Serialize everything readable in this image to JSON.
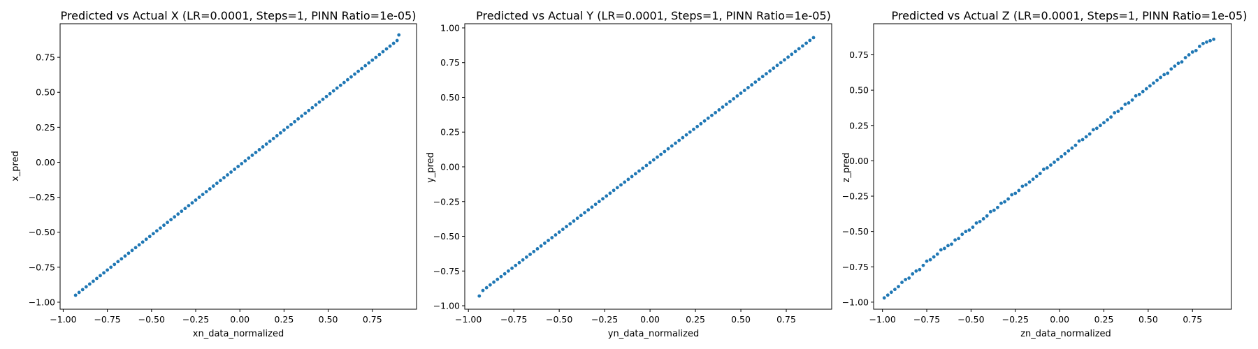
{
  "colors": {
    "point": "#1f77b4",
    "axes": "#000000",
    "background": "#ffffff"
  },
  "chart_data": [
    {
      "type": "scatter",
      "title": "Predicted vs Actual X (LR=0.0001, Steps=1, PINN Ratio=1e-05)",
      "xlabel": "xn_data_normalized",
      "ylabel": "x_pred",
      "xlim": [
        -1.0175,
        1.0
      ],
      "ylim": [
        -1.05,
        0.99
      ],
      "xticks": [
        -1.0,
        -0.75,
        -0.5,
        -0.25,
        0.0,
        0.25,
        0.5,
        0.75
      ],
      "yticks": [
        -1.0,
        -0.75,
        -0.5,
        -0.25,
        0.0,
        0.25,
        0.5,
        0.75
      ],
      "xtick_labels": [
        "−1.00",
        "−0.75",
        "−0.50",
        "−0.25",
        "0.00",
        "0.25",
        "0.50",
        "0.75"
      ],
      "ytick_labels": [
        "−1.00",
        "−0.75",
        "−0.50",
        "−0.25",
        "0.00",
        "0.25",
        "0.50",
        "0.75"
      ],
      "grid": false,
      "series": [
        {
          "x": [
            -0.93,
            -0.91,
            -0.89,
            -0.87,
            -0.85,
            -0.83,
            -0.81,
            -0.79,
            -0.77,
            -0.75,
            -0.73,
            -0.71,
            -0.69,
            -0.67,
            -0.65,
            -0.63,
            -0.61,
            -0.59,
            -0.57,
            -0.55,
            -0.53,
            -0.51,
            -0.49,
            -0.47,
            -0.45,
            -0.43,
            -0.41,
            -0.39,
            -0.37,
            -0.35,
            -0.33,
            -0.31,
            -0.29,
            -0.27,
            -0.25,
            -0.23,
            -0.21,
            -0.19,
            -0.17,
            -0.15,
            -0.13,
            -0.11,
            -0.09,
            -0.07,
            -0.05,
            -0.03,
            -0.01,
            0.01,
            0.03,
            0.05,
            0.07,
            0.09,
            0.11,
            0.13,
            0.15,
            0.17,
            0.19,
            0.21,
            0.23,
            0.25,
            0.27,
            0.29,
            0.31,
            0.33,
            0.35,
            0.37,
            0.39,
            0.41,
            0.43,
            0.45,
            0.47,
            0.49,
            0.51,
            0.53,
            0.55,
            0.57,
            0.59,
            0.61,
            0.63,
            0.65,
            0.67,
            0.69,
            0.71,
            0.73,
            0.75,
            0.77,
            0.79,
            0.81,
            0.83,
            0.85,
            0.87,
            0.89,
            0.9
          ],
          "y": [
            -0.95,
            -0.93,
            -0.91,
            -0.89,
            -0.87,
            -0.85,
            -0.83,
            -0.81,
            -0.79,
            -0.77,
            -0.75,
            -0.73,
            -0.71,
            -0.69,
            -0.67,
            -0.65,
            -0.63,
            -0.61,
            -0.59,
            -0.57,
            -0.55,
            -0.53,
            -0.51,
            -0.49,
            -0.47,
            -0.45,
            -0.43,
            -0.41,
            -0.39,
            -0.37,
            -0.35,
            -0.33,
            -0.31,
            -0.29,
            -0.27,
            -0.25,
            -0.23,
            -0.21,
            -0.19,
            -0.17,
            -0.15,
            -0.13,
            -0.11,
            -0.09,
            -0.07,
            -0.05,
            -0.03,
            -0.01,
            0.01,
            0.03,
            0.05,
            0.07,
            0.09,
            0.11,
            0.13,
            0.15,
            0.17,
            0.19,
            0.21,
            0.23,
            0.25,
            0.27,
            0.29,
            0.31,
            0.33,
            0.35,
            0.37,
            0.39,
            0.41,
            0.43,
            0.45,
            0.47,
            0.49,
            0.51,
            0.53,
            0.55,
            0.57,
            0.59,
            0.61,
            0.63,
            0.65,
            0.67,
            0.69,
            0.71,
            0.73,
            0.75,
            0.77,
            0.79,
            0.81,
            0.83,
            0.85,
            0.87,
            0.91
          ]
        }
      ]
    },
    {
      "type": "scatter",
      "title": "Predicted vs Actual Y (LR=0.0001, Steps=1, PINN Ratio=1e-05)",
      "xlabel": "yn_data_normalized",
      "ylabel": "y_pred",
      "xlim": [
        -1.02,
        1.0
      ],
      "ylim": [
        -1.025,
        1.03
      ],
      "xticks": [
        -1.0,
        -0.75,
        -0.5,
        -0.25,
        0.0,
        0.25,
        0.5,
        0.75
      ],
      "yticks": [
        -1.0,
        -0.75,
        -0.5,
        -0.25,
        0.0,
        0.25,
        0.5,
        0.75,
        1.0
      ],
      "xtick_labels": [
        "−1.00",
        "−0.75",
        "−0.50",
        "−0.25",
        "0.00",
        "0.25",
        "0.50",
        "0.75"
      ],
      "ytick_labels": [
        "−1.00",
        "−0.75",
        "−0.50",
        "−0.25",
        "0.00",
        "0.25",
        "0.50",
        "0.75",
        "1.00"
      ],
      "grid": false,
      "series": [
        {
          "x": [
            -0.94,
            -0.92,
            -0.9,
            -0.88,
            -0.86,
            -0.84,
            -0.82,
            -0.8,
            -0.78,
            -0.76,
            -0.74,
            -0.72,
            -0.7,
            -0.68,
            -0.66,
            -0.64,
            -0.62,
            -0.6,
            -0.58,
            -0.56,
            -0.54,
            -0.52,
            -0.5,
            -0.48,
            -0.46,
            -0.44,
            -0.42,
            -0.4,
            -0.38,
            -0.36,
            -0.34,
            -0.32,
            -0.3,
            -0.28,
            -0.26,
            -0.24,
            -0.22,
            -0.2,
            -0.18,
            -0.16,
            -0.14,
            -0.12,
            -0.1,
            -0.08,
            -0.06,
            -0.04,
            -0.02,
            0.0,
            0.02,
            0.04,
            0.06,
            0.08,
            0.1,
            0.12,
            0.14,
            0.16,
            0.18,
            0.2,
            0.22,
            0.24,
            0.26,
            0.28,
            0.3,
            0.32,
            0.34,
            0.36,
            0.38,
            0.4,
            0.42,
            0.44,
            0.46,
            0.48,
            0.5,
            0.52,
            0.54,
            0.56,
            0.58,
            0.6,
            0.62,
            0.64,
            0.66,
            0.68,
            0.7,
            0.72,
            0.74,
            0.76,
            0.78,
            0.8,
            0.82,
            0.84,
            0.86,
            0.88,
            0.9
          ],
          "y": [
            -0.93,
            -0.89,
            -0.87,
            -0.85,
            -0.83,
            -0.81,
            -0.79,
            -0.77,
            -0.75,
            -0.73,
            -0.71,
            -0.69,
            -0.67,
            -0.65,
            -0.63,
            -0.61,
            -0.59,
            -0.57,
            -0.55,
            -0.53,
            -0.51,
            -0.49,
            -0.47,
            -0.45,
            -0.43,
            -0.41,
            -0.39,
            -0.37,
            -0.35,
            -0.33,
            -0.31,
            -0.29,
            -0.27,
            -0.25,
            -0.23,
            -0.21,
            -0.19,
            -0.17,
            -0.15,
            -0.13,
            -0.11,
            -0.09,
            -0.07,
            -0.05,
            -0.03,
            -0.01,
            0.01,
            0.03,
            0.05,
            0.07,
            0.09,
            0.11,
            0.13,
            0.15,
            0.17,
            0.19,
            0.21,
            0.23,
            0.25,
            0.27,
            0.29,
            0.31,
            0.33,
            0.35,
            0.37,
            0.39,
            0.41,
            0.43,
            0.45,
            0.47,
            0.49,
            0.51,
            0.53,
            0.55,
            0.57,
            0.59,
            0.61,
            0.63,
            0.65,
            0.67,
            0.69,
            0.71,
            0.73,
            0.75,
            0.77,
            0.79,
            0.81,
            0.83,
            0.85,
            0.87,
            0.89,
            0.91,
            0.93
          ]
        }
      ]
    },
    {
      "type": "scatter",
      "title": "Predicted vs Actual Z (LR=0.0001, Steps=1, PINN Ratio=1e-05)",
      "xlabel": "zn_data_normalized",
      "ylabel": "z_pred",
      "xlim": [
        -1.05,
        0.97
      ],
      "ylim": [
        -1.05,
        0.97
      ],
      "xticks": [
        -1.0,
        -0.75,
        -0.5,
        -0.25,
        0.0,
        0.25,
        0.5,
        0.75
      ],
      "yticks": [
        -1.0,
        -0.75,
        -0.5,
        -0.25,
        0.0,
        0.25,
        0.5,
        0.75
      ],
      "xtick_labels": [
        "−1.00",
        "−0.75",
        "−0.50",
        "−0.25",
        "0.00",
        "0.25",
        "0.50",
        "0.75"
      ],
      "ytick_labels": [
        "−1.00",
        "−0.75",
        "−0.50",
        "−0.25",
        "0.00",
        "0.25",
        "0.50",
        "0.75"
      ],
      "grid": false,
      "series": [
        {
          "x": [
            -0.99,
            -0.97,
            -0.95,
            -0.93,
            -0.91,
            -0.89,
            -0.87,
            -0.85,
            -0.83,
            -0.81,
            -0.79,
            -0.77,
            -0.75,
            -0.73,
            -0.71,
            -0.69,
            -0.67,
            -0.65,
            -0.63,
            -0.61,
            -0.59,
            -0.57,
            -0.55,
            -0.53,
            -0.51,
            -0.49,
            -0.47,
            -0.45,
            -0.43,
            -0.41,
            -0.39,
            -0.37,
            -0.35,
            -0.33,
            -0.31,
            -0.29,
            -0.27,
            -0.25,
            -0.23,
            -0.21,
            -0.19,
            -0.17,
            -0.15,
            -0.13,
            -0.11,
            -0.09,
            -0.07,
            -0.05,
            -0.03,
            -0.01,
            0.01,
            0.03,
            0.05,
            0.07,
            0.09,
            0.11,
            0.13,
            0.15,
            0.17,
            0.19,
            0.21,
            0.23,
            0.25,
            0.27,
            0.29,
            0.31,
            0.33,
            0.35,
            0.37,
            0.39,
            0.41,
            0.43,
            0.45,
            0.47,
            0.49,
            0.51,
            0.53,
            0.55,
            0.57,
            0.59,
            0.61,
            0.63,
            0.65,
            0.67,
            0.69,
            0.71,
            0.73,
            0.75,
            0.77,
            0.79,
            0.81,
            0.83,
            0.85,
            0.87
          ],
          "y": [
            -0.97,
            -0.95,
            -0.93,
            -0.91,
            -0.89,
            -0.86,
            -0.84,
            -0.83,
            -0.8,
            -0.78,
            -0.77,
            -0.74,
            -0.71,
            -0.7,
            -0.68,
            -0.66,
            -0.63,
            -0.62,
            -0.6,
            -0.59,
            -0.56,
            -0.55,
            -0.52,
            -0.5,
            -0.49,
            -0.47,
            -0.44,
            -0.43,
            -0.41,
            -0.39,
            -0.36,
            -0.35,
            -0.33,
            -0.3,
            -0.29,
            -0.27,
            -0.24,
            -0.23,
            -0.21,
            -0.18,
            -0.17,
            -0.15,
            -0.13,
            -0.11,
            -0.09,
            -0.06,
            -0.05,
            -0.03,
            -0.01,
            0.01,
            0.03,
            0.05,
            0.07,
            0.09,
            0.11,
            0.14,
            0.15,
            0.17,
            0.19,
            0.22,
            0.23,
            0.25,
            0.27,
            0.29,
            0.31,
            0.34,
            0.35,
            0.37,
            0.4,
            0.41,
            0.43,
            0.46,
            0.47,
            0.49,
            0.51,
            0.53,
            0.55,
            0.57,
            0.59,
            0.61,
            0.62,
            0.65,
            0.67,
            0.69,
            0.7,
            0.73,
            0.75,
            0.77,
            0.78,
            0.81,
            0.83,
            0.84,
            0.85,
            0.86
          ]
        }
      ]
    }
  ]
}
